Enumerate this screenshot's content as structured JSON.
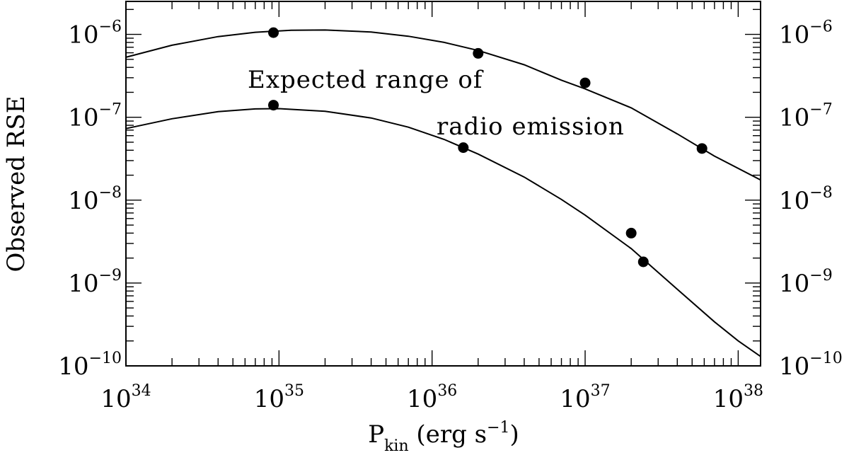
{
  "chart_data": {
    "type": "scatter",
    "title": "",
    "x_scale": "log",
    "y_scale": "log",
    "xlim": [
      1e+34,
      1.4e+38
    ],
    "ylim": [
      1e-10,
      2.5e-06
    ],
    "x_ticks": [
      1e+34,
      1e+35,
      1e+36,
      1e+37,
      1e+38
    ],
    "x_tick_labels": [
      {
        "base": "10",
        "exp": "34"
      },
      {
        "base": "10",
        "exp": "35"
      },
      {
        "base": "10",
        "exp": "36"
      },
      {
        "base": "10",
        "exp": "37"
      },
      {
        "base": "10",
        "exp": "38"
      }
    ],
    "y_ticks": [
      1e-10,
      1e-09,
      1e-08,
      1e-07,
      1e-06
    ],
    "y_tick_labels": [
      {
        "base": "10",
        "exp": "−10"
      },
      {
        "base": "10",
        "exp": "−9"
      },
      {
        "base": "10",
        "exp": "−8"
      },
      {
        "base": "10",
        "exp": "−7"
      },
      {
        "base": "10",
        "exp": "−6"
      }
    ],
    "xlabel": {
      "main": "P",
      "sub": "kin",
      "rest": " (erg s",
      "exp": "−1",
      "close": ")"
    },
    "ylabel": "Observed RSE",
    "annotation_lines": [
      "Expected range of",
      "radio emission"
    ],
    "series": [
      {
        "points": [
          [
            9.2e+34,
            1.05e-06
          ],
          [
            2e+36,
            5.9e-07
          ],
          [
            1e+37,
            2.6e-07
          ],
          [
            5.8e+37,
            4.2e-08
          ]
        ],
        "curve": [
          [
            1e+34,
            5.3e-07
          ],
          [
            2e+34,
            7.4e-07
          ],
          [
            4e+34,
            9.4e-07
          ],
          [
            7e+34,
            1.06e-06
          ],
          [
            1.2e+35,
            1.12e-06
          ],
          [
            2e+35,
            1.13e-06
          ],
          [
            4e+35,
            1.07e-06
          ],
          [
            7e+35,
            9.5e-07
          ],
          [
            1.2e+36,
            8e-07
          ],
          [
            2e+36,
            6.4e-07
          ],
          [
            4e+36,
            4.3e-07
          ],
          [
            7e+36,
            2.8e-07
          ],
          [
            1e+37,
            2.2e-07
          ],
          [
            2e+37,
            1.3e-07
          ],
          [
            4e+37,
            6.3e-08
          ],
          [
            7e+37,
            3.4e-08
          ],
          [
            1.4e+38,
            1.75e-08
          ]
        ]
      },
      {
        "points": [
          [
            9.2e+34,
            1.4e-07
          ],
          [
            1.6e+36,
            4.3e-08
          ],
          [
            2e+37,
            4e-09
          ],
          [
            2.4e+37,
            1.8e-09
          ]
        ],
        "curve": [
          [
            1e+34,
            7.3e-08
          ],
          [
            2e+34,
            9.6e-08
          ],
          [
            4e+34,
            1.17e-07
          ],
          [
            7e+34,
            1.26e-07
          ],
          [
            1e+35,
            1.27e-07
          ],
          [
            2e+35,
            1.18e-07
          ],
          [
            4e+35,
            9.8e-08
          ],
          [
            7e+35,
            7.6e-08
          ],
          [
            1.2e+36,
            5.4e-08
          ],
          [
            2e+36,
            3.6e-08
          ],
          [
            4e+36,
            1.9e-08
          ],
          [
            7e+36,
            1.02e-08
          ],
          [
            1e+37,
            6.6e-09
          ],
          [
            2e+37,
            2.6e-09
          ],
          [
            4e+37,
            8.4e-10
          ],
          [
            7e+37,
            3.4e-10
          ],
          [
            1e+38,
            2e-10
          ],
          [
            1.4e+38,
            1.3e-10
          ]
        ]
      }
    ]
  }
}
